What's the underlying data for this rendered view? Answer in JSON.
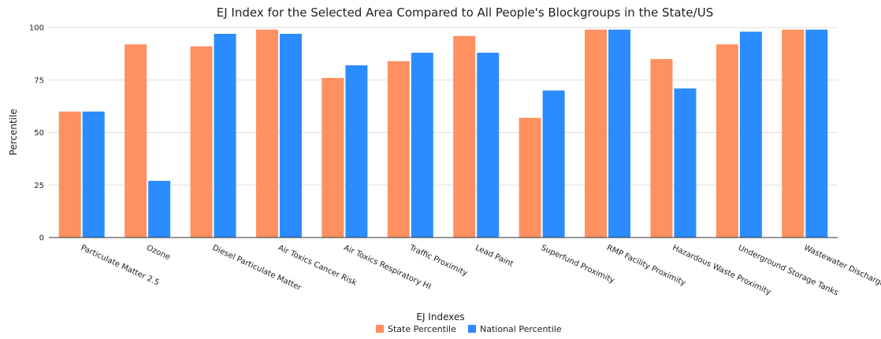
{
  "chart_data": {
    "type": "bar",
    "title": "EJ Index for the Selected Area Compared to All People's Blockgroups in the State/US",
    "xlabel": "EJ Indexes",
    "ylabel": "Percentile",
    "ylim": [
      0,
      100
    ],
    "yticks": [
      0,
      25,
      50,
      75,
      100
    ],
    "grid": true,
    "legend_position": "bottom-center",
    "categories": [
      "Particulate Matter 2.5",
      "Ozone",
      "Diesel Particulate Matter",
      "Air Toxics Cancer Risk",
      "Air Toxics Respiratory HI",
      "Traffic Proximity",
      "Lead Paint",
      "Superfund Proximity",
      "RMP Facility Proximity",
      "Hazardous Waste Proximity",
      "Underground Storage Tanks",
      "Wastewater Discharge"
    ],
    "series": [
      {
        "name": "State Percentile",
        "color": "#ff9060",
        "values": [
          60,
          92,
          91,
          99,
          76,
          84,
          96,
          57,
          99,
          85,
          92,
          99
        ]
      },
      {
        "name": "National Percentile",
        "color": "#2b8cff",
        "values": [
          60,
          27,
          97,
          97,
          82,
          88,
          88,
          70,
          99,
          71,
          98,
          99
        ]
      }
    ]
  }
}
